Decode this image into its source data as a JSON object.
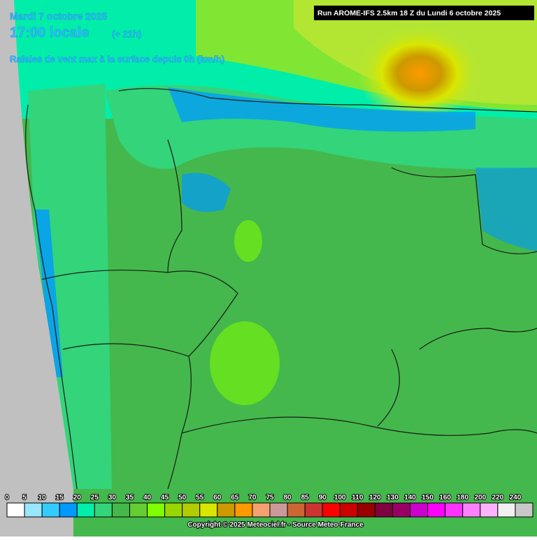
{
  "header": {
    "date": "Mardi 7 octobre 2025",
    "time": "17:00 locale",
    "offset": "(+ 21h)",
    "subtitle": "Rafales de vent max à la surface depuis 0h (km/h)",
    "run": "Run AROME-IFS 2.5km 18 Z du Lundi 6 octobre 2025"
  },
  "legend": {
    "labels": [
      0,
      5,
      10,
      15,
      20,
      25,
      30,
      35,
      40,
      45,
      50,
      55,
      60,
      65,
      70,
      75,
      80,
      85,
      90,
      100,
      110,
      120,
      130,
      140,
      150,
      160,
      180,
      200,
      220,
      240
    ],
    "colors": [
      "#ffffff",
      "#99e6ff",
      "#33ccff",
      "#0099ff",
      "#00eeaa",
      "#33d47a",
      "#44b84c",
      "#66cc33",
      "#80ff00",
      "#99d600",
      "#b3cc00",
      "#d9e600",
      "#cc9900",
      "#ff9900",
      "#f4a070",
      "#cc9999",
      "#cc6633",
      "#cc3333",
      "#ff0000",
      "#cc0000",
      "#990000",
      "#800040",
      "#990066",
      "#cc00cc",
      "#ff00ff",
      "#ff33ff",
      "#ff80ff",
      "#ffb3ff",
      "#f0f0f0",
      "#c8c8c8"
    ]
  },
  "footer": {
    "copyright": "Copyright © 2025 Meteociel.fr - Source Meteo-France"
  }
}
